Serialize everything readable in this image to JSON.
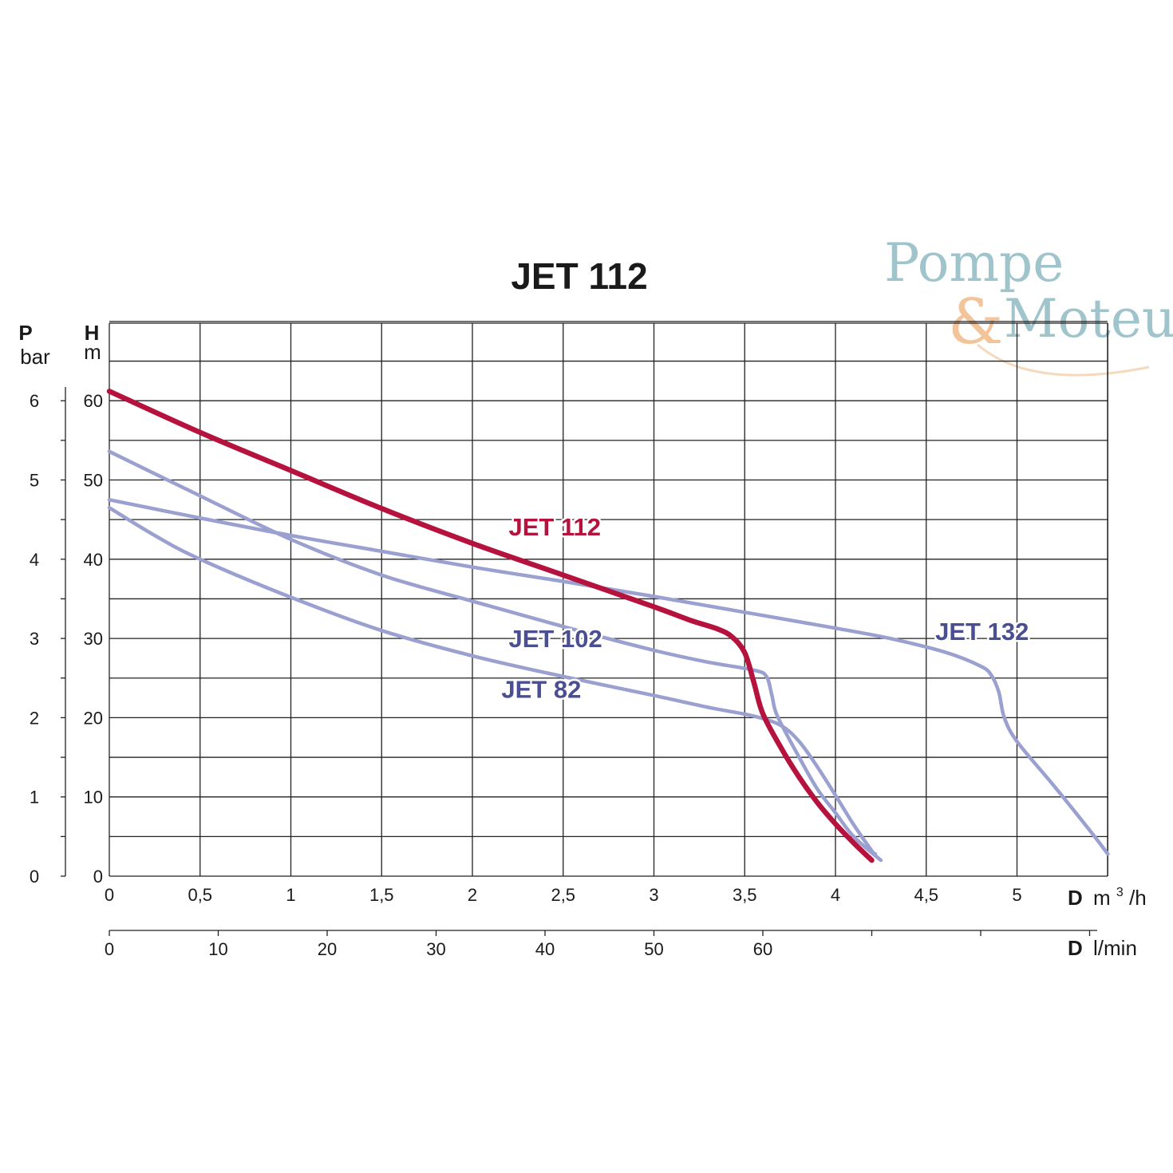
{
  "chart_data": {
    "type": "line",
    "title": "JET 112",
    "x_axis": {
      "label_bold": "D",
      "unit": "m³/h",
      "unit_base": "m",
      "unit_sup": "3",
      "unit_tail": "/h",
      "range": [
        0,
        5.5
      ],
      "ticks": [
        {
          "value": 0,
          "label": "0"
        },
        {
          "value": 0.5,
          "label": "0,5"
        },
        {
          "value": 1,
          "label": "1"
        },
        {
          "value": 1.5,
          "label": "1,5"
        },
        {
          "value": 2,
          "label": "2"
        },
        {
          "value": 2.5,
          "label": "2,5"
        },
        {
          "value": 3,
          "label": "3"
        },
        {
          "value": 3.5,
          "label": "3,5"
        },
        {
          "value": 4,
          "label": "4"
        },
        {
          "value": 4.5,
          "label": "4,5"
        },
        {
          "value": 5,
          "label": "5"
        }
      ]
    },
    "x2_axis": {
      "label_bold": "D",
      "unit": "l/min",
      "ticks": [
        {
          "value": 0,
          "label": "0"
        },
        {
          "value": 10,
          "label": "10"
        },
        {
          "value": 20,
          "label": "20"
        },
        {
          "value": 30,
          "label": "30"
        },
        {
          "value": 40,
          "label": "40"
        },
        {
          "value": 50,
          "label": "50"
        },
        {
          "value": 60,
          "label": "60"
        },
        {
          "value": 70,
          "label": ""
        },
        {
          "value": 80,
          "label": ""
        },
        {
          "value": 90,
          "label": ""
        }
      ]
    },
    "y_axis": {
      "label_bold": "H",
      "unit": "m",
      "range": [
        0,
        70
      ],
      "ticks": [
        {
          "value": 0,
          "label": "0"
        },
        {
          "value": 10,
          "label": "10"
        },
        {
          "value": 20,
          "label": "20"
        },
        {
          "value": 30,
          "label": "30"
        },
        {
          "value": 40,
          "label": "40"
        },
        {
          "value": 50,
          "label": "50"
        },
        {
          "value": 60,
          "label": "60"
        }
      ]
    },
    "y2_axis": {
      "label_bold": "P",
      "unit": "bar",
      "ticks": [
        {
          "value": 0,
          "label": "0"
        },
        {
          "value": 1,
          "label": "1"
        },
        {
          "value": 2,
          "label": "2"
        },
        {
          "value": 3,
          "label": "3"
        },
        {
          "value": 4,
          "label": "4"
        },
        {
          "value": 5,
          "label": "5"
        },
        {
          "value": 6,
          "label": "6"
        }
      ]
    },
    "grid": true,
    "series": [
      {
        "name": "JET 112",
        "color": "#b5123e",
        "emphasis": true,
        "points": [
          [
            0,
            61.2
          ],
          [
            0.5,
            56
          ],
          [
            1,
            51.2
          ],
          [
            1.5,
            46.4
          ],
          [
            2,
            42
          ],
          [
            2.5,
            38
          ],
          [
            3,
            34
          ],
          [
            3.2,
            32.3
          ],
          [
            3.35,
            31.2
          ],
          [
            3.43,
            30.2
          ],
          [
            3.5,
            28.2
          ],
          [
            3.55,
            24.5
          ],
          [
            3.6,
            20.5
          ],
          [
            3.7,
            16.2
          ],
          [
            3.8,
            12.5
          ],
          [
            3.9,
            9.3
          ],
          [
            4.0,
            6.6
          ],
          [
            4.1,
            4.2
          ],
          [
            4.2,
            2.0
          ]
        ]
      },
      {
        "name": "JET 102",
        "color": "#9aa0cf",
        "emphasis": false,
        "points": [
          [
            0,
            53.6
          ],
          [
            0.5,
            48
          ],
          [
            1,
            42.5
          ],
          [
            1.5,
            38
          ],
          [
            2,
            34.7
          ],
          [
            2.5,
            31.5
          ],
          [
            3,
            28.5
          ],
          [
            3.3,
            27
          ],
          [
            3.55,
            26
          ],
          [
            3.62,
            25.2
          ],
          [
            3.65,
            22.8
          ],
          [
            3.68,
            20.2
          ],
          [
            3.8,
            15
          ],
          [
            3.9,
            11
          ],
          [
            4.0,
            8
          ],
          [
            4.1,
            5
          ],
          [
            4.25,
            2.0
          ]
        ]
      },
      {
        "name": "JET 82",
        "color": "#9aa0cf",
        "emphasis": false,
        "points": [
          [
            0,
            46.5
          ],
          [
            0.25,
            43
          ],
          [
            0.5,
            40
          ],
          [
            1,
            35.2
          ],
          [
            1.5,
            31
          ],
          [
            2,
            27.8
          ],
          [
            2.5,
            25.2
          ],
          [
            3,
            22.8
          ],
          [
            3.3,
            21.3
          ],
          [
            3.55,
            20.2
          ],
          [
            3.7,
            19
          ],
          [
            3.8,
            17
          ],
          [
            3.9,
            13.8
          ],
          [
            4.0,
            10.2
          ],
          [
            4.1,
            6.5
          ],
          [
            4.2,
            3.2
          ],
          [
            4.22,
            2.8
          ]
        ]
      },
      {
        "name": "JET 132",
        "color": "#9aa0cf",
        "emphasis": false,
        "points": [
          [
            0,
            47.5
          ],
          [
            0.5,
            45.2
          ],
          [
            1,
            43
          ],
          [
            1.5,
            41
          ],
          [
            2,
            39
          ],
          [
            2.5,
            37.2
          ],
          [
            3,
            35.3
          ],
          [
            3.5,
            33.3
          ],
          [
            4,
            31.3
          ],
          [
            4.3,
            30
          ],
          [
            4.6,
            28.3
          ],
          [
            4.8,
            26.5
          ],
          [
            4.86,
            25.3
          ],
          [
            4.9,
            23.2
          ],
          [
            4.93,
            20
          ],
          [
            5.0,
            17
          ],
          [
            5.2,
            11.5
          ],
          [
            5.4,
            5.8
          ],
          [
            5.5,
            2.8
          ]
        ]
      }
    ],
    "series_labels": [
      {
        "text": "JET 112",
        "color": "#b5123e",
        "x": 2.2,
        "y": 44.1
      },
      {
        "text": "JET 102",
        "color": "#4a4f91",
        "x": 2.2,
        "y": 30.0
      },
      {
        "text": "JET 82",
        "color": "#4a4f91",
        "x": 2.16,
        "y": 23.6
      },
      {
        "text": "JET 132",
        "color": "#4a4f91",
        "x": 4.55,
        "y": 30.9
      }
    ]
  },
  "logo": {
    "line1": "Pompe",
    "ampersand": "&",
    "line2": "Moteur",
    "color_primary": "#9fc4cc",
    "color_accent": "#f3c49a"
  }
}
